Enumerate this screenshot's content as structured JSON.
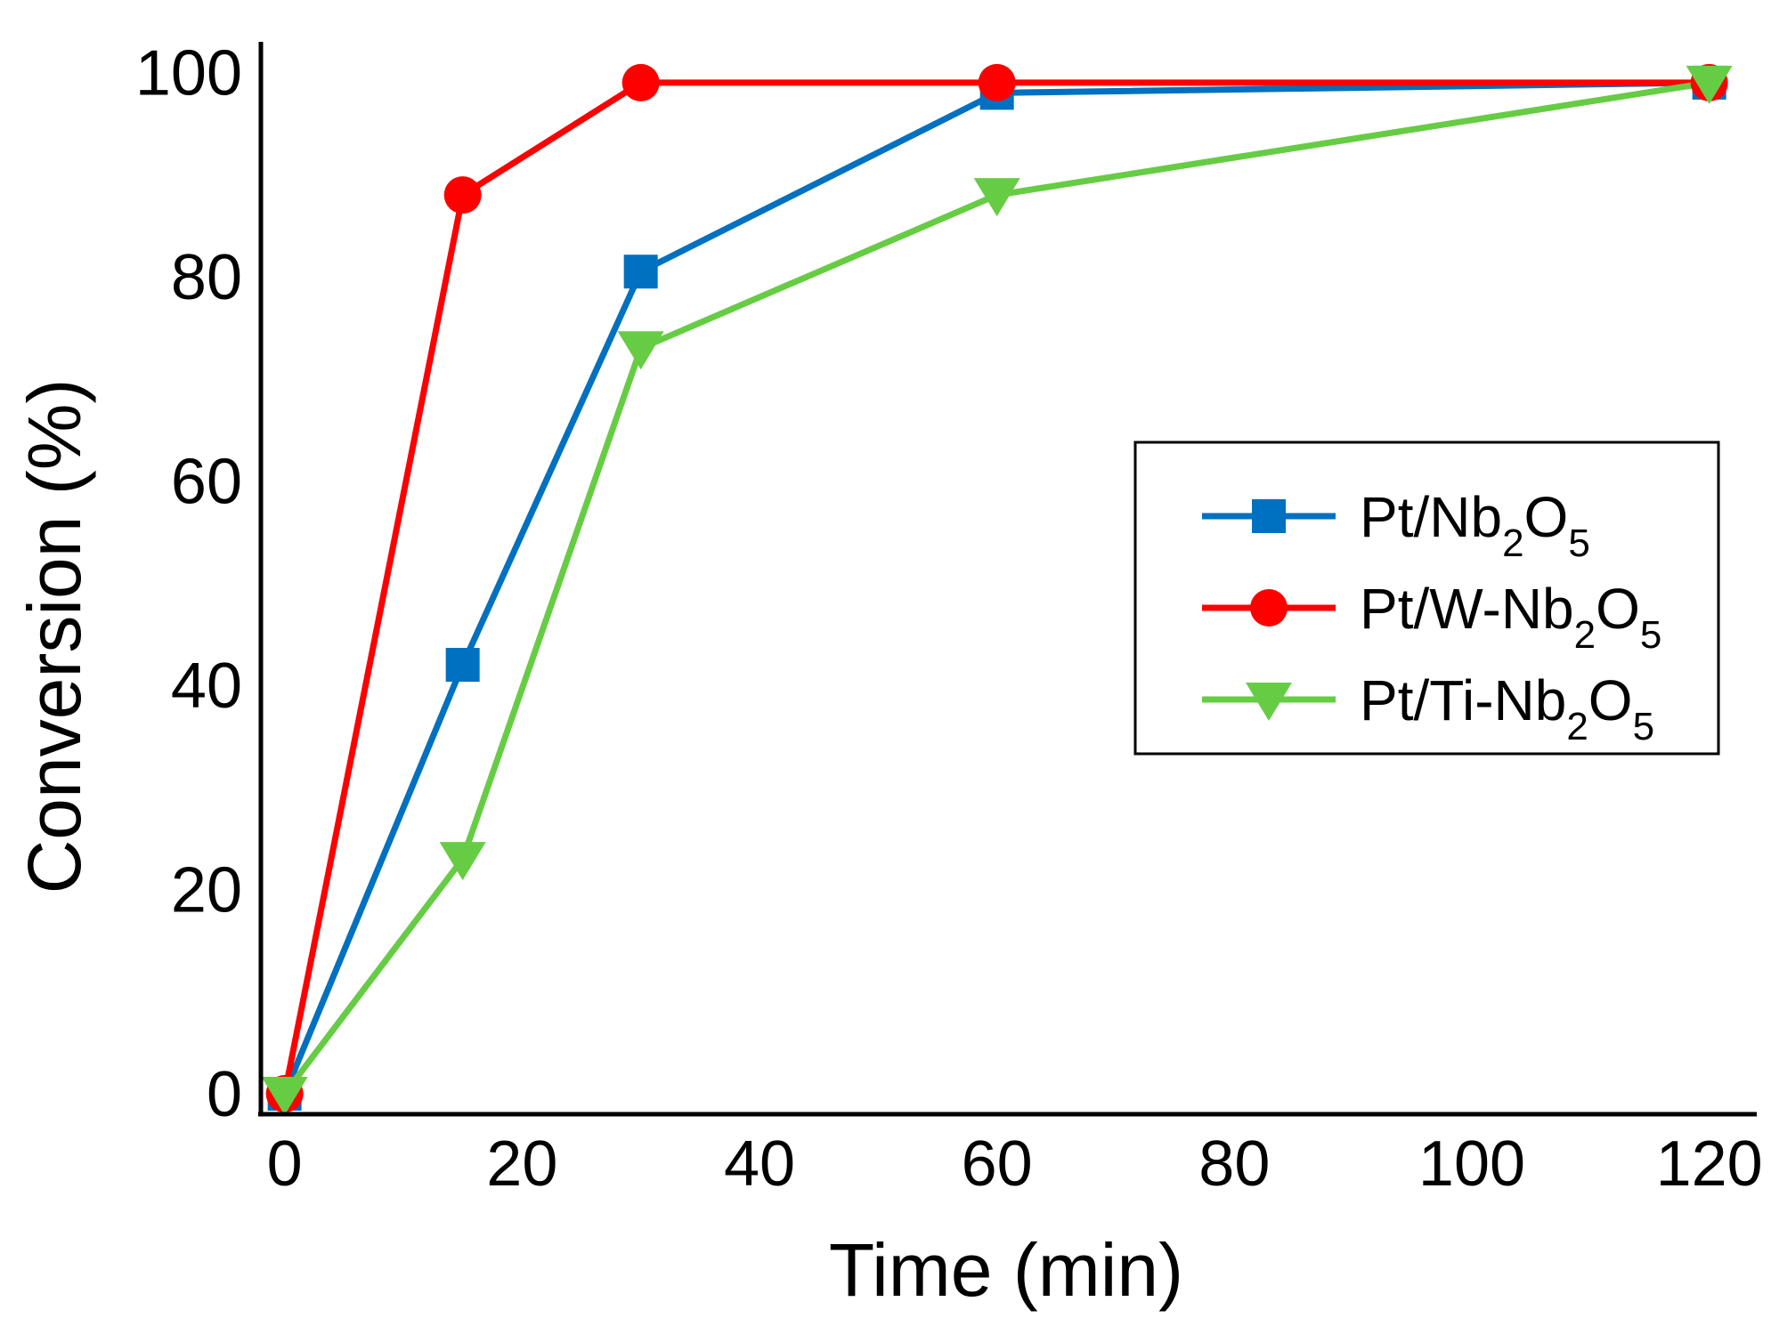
{
  "chart_data": {
    "type": "line",
    "title": "",
    "xlabel": "Time (min)",
    "ylabel": "Conversion (%)",
    "xlim": [
      -2,
      124
    ],
    "ylim": [
      -2,
      103
    ],
    "xticks": [
      0,
      20,
      40,
      60,
      80,
      100,
      120
    ],
    "yticks": [
      0,
      20,
      40,
      60,
      80,
      100
    ],
    "grid": false,
    "legend_position": "right-middle",
    "x": [
      0,
      15,
      30,
      60,
      120
    ],
    "series": [
      {
        "name": "Pt/Nb2O5",
        "label_parts": [
          "Pt/Nb",
          "2",
          "O",
          "5"
        ],
        "color": "#0070C0",
        "marker": "square",
        "values": [
          0,
          42,
          80.5,
          98,
          99
        ]
      },
      {
        "name": "Pt/W-Nb2O5",
        "label_parts": [
          "Pt/W-Nb",
          "2",
          "O",
          "5"
        ],
        "color": "#FF0000",
        "marker": "circle",
        "values": [
          0,
          88,
          99,
          99,
          99
        ]
      },
      {
        "name": "Pt/Ti-Nb2O5",
        "label_parts": [
          "Pt/Ti-Nb",
          "2",
          "O",
          "5"
        ],
        "color": "#66CC44",
        "marker": "triangle-down",
        "values": [
          0,
          23,
          73,
          88,
          99
        ]
      }
    ]
  }
}
